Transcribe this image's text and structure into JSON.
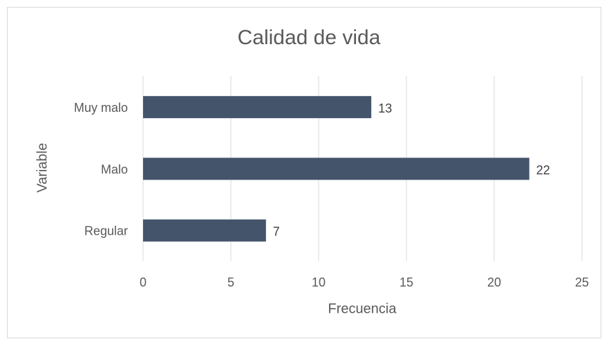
{
  "chart_data": {
    "type": "bar",
    "orientation": "horizontal",
    "title": "Calidad de vida",
    "categories": [
      "Muy malo",
      "Malo",
      "Regular"
    ],
    "values": [
      13,
      22,
      7
    ],
    "color": "#44546a",
    "xlabel": "Frecuencia",
    "ylabel": "Variable",
    "xlim": [
      0,
      25
    ],
    "xticks": [
      0,
      5,
      10,
      15,
      20,
      25
    ],
    "grid": true
  }
}
